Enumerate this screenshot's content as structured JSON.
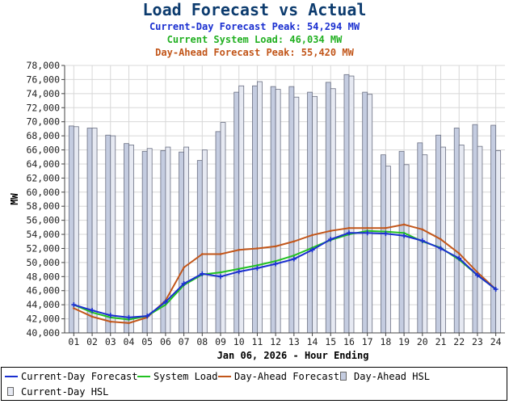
{
  "header": {
    "title": "Load Forecast vs Actual",
    "forecast_peak": "Current-Day Forecast Peak:  54,294 MW",
    "system_load": "Current System Load:  46,034 MW",
    "dayahead_peak": "Day-Ahead Forecast Peak:  55,420 MW"
  },
  "colors": {
    "current_day_forecast": "#1a2fd0",
    "system_load": "#22c122",
    "day_ahead_forecast": "#c2561a",
    "day_ahead_hsl": "#c4cce0",
    "current_day_hsl": "#e6e9f2",
    "title": "#0c3b6e"
  },
  "chart_data": {
    "type": "bar+line",
    "xlabel": "Jan 06, 2026 - Hour Ending",
    "ylabel": "MW",
    "ylim": [
      40000,
      78000
    ],
    "yticks": [
      "40,000",
      "42,000",
      "44,000",
      "46,000",
      "48,000",
      "50,000",
      "52,000",
      "54,000",
      "56,000",
      "58,000",
      "60,000",
      "62,000",
      "64,000",
      "66,000",
      "68,000",
      "70,000",
      "72,000",
      "74,000",
      "76,000",
      "78,000"
    ],
    "categories": [
      "01",
      "02",
      "03",
      "04",
      "05",
      "06",
      "07",
      "08",
      "09",
      "10",
      "11",
      "12",
      "13",
      "14",
      "15",
      "16",
      "17",
      "18",
      "19",
      "20",
      "21",
      "22",
      "23",
      "24"
    ],
    "bar_series": [
      {
        "name": "Day-Ahead HSL",
        "values": [
          69400,
          69100,
          68100,
          66900,
          65800,
          65900,
          65700,
          64500,
          68600,
          74200,
          75100,
          75000,
          75000,
          74200,
          75600,
          76700,
          74200,
          65300,
          65800,
          67000,
          68100,
          69100,
          69600,
          69500
        ]
      },
      {
        "name": "Current-Day HSL",
        "values": [
          69300,
          69100,
          68000,
          66700,
          66200,
          66400,
          66400,
          66000,
          69900,
          75100,
          75700,
          74600,
          73500,
          73600,
          74700,
          76500,
          73900,
          63700,
          63900,
          65300,
          66400,
          66700,
          66500,
          65900
        ]
      }
    ],
    "line_series": [
      {
        "name": "Current-Day Forecast",
        "values": [
          44000,
          43200,
          42500,
          42200,
          42400,
          44400,
          47000,
          48400,
          48000,
          48700,
          49200,
          49800,
          50500,
          51800,
          53300,
          54200,
          54200,
          54100,
          53800,
          53100,
          52000,
          50600,
          48200,
          46200
        ]
      },
      {
        "name": "System Load",
        "values": [
          44000,
          42900,
          42200,
          41900,
          42400,
          44000,
          46800,
          48300,
          48600,
          49100,
          49600,
          50200,
          51000,
          52100,
          53200,
          54000,
          54500,
          54400,
          54200,
          53000,
          52100,
          50400,
          48200,
          46200
        ]
      },
      {
        "name": "Day-Ahead Forecast",
        "values": [
          43500,
          42300,
          41600,
          41400,
          42200,
          44600,
          49300,
          51200,
          51200,
          51800,
          52000,
          52300,
          53000,
          53900,
          54500,
          54900,
          54900,
          54900,
          55400,
          54700,
          53300,
          51300,
          48600,
          46200
        ]
      }
    ]
  },
  "legend": [
    {
      "label": "Current-Day Forecast",
      "kind": "line"
    },
    {
      "label": "System Load",
      "kind": "line"
    },
    {
      "label": "Day-Ahead Forecast",
      "kind": "line"
    },
    {
      "label": "Day-Ahead HSL",
      "kind": "bar"
    },
    {
      "label": "Current-Day HSL",
      "kind": "bar"
    }
  ]
}
